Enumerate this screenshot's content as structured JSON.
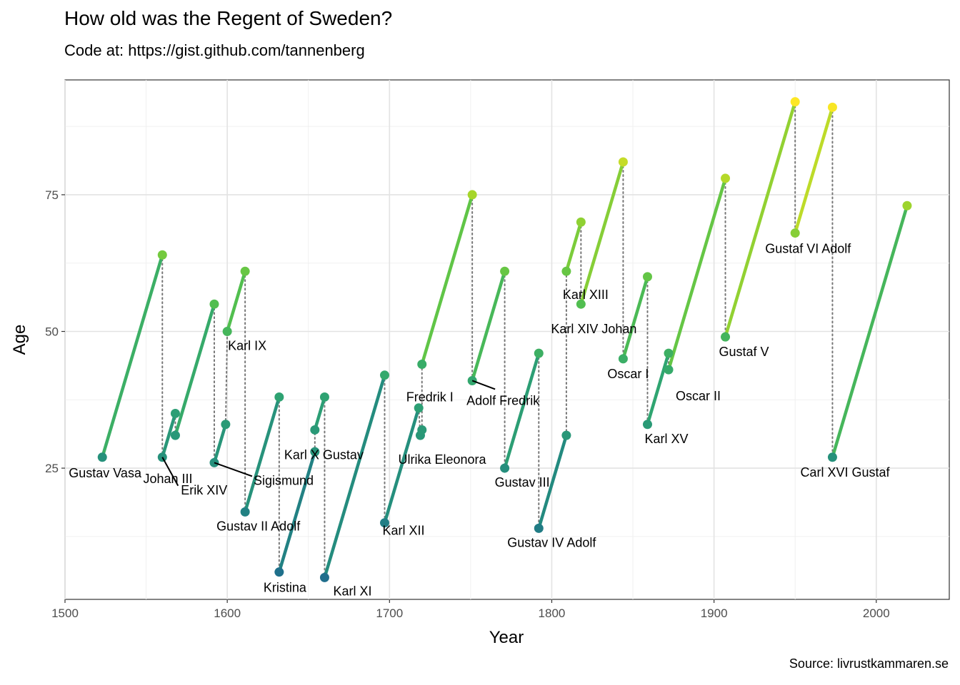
{
  "title": "How old was the Regent of Sweden?",
  "subtitle": "Code at: https://gist.github.com/tannenberg",
  "caption": "Source: livrustkammaren.se",
  "chart_data": {
    "type": "line",
    "title": "How old was the Regent of Sweden?",
    "subtitle": "Code at: https://gist.github.com/tannenberg",
    "xlabel": "Year",
    "ylabel": "Age",
    "xlim": [
      1500,
      2045
    ],
    "ylim": [
      1,
      96
    ],
    "x_ticks": [
      1500,
      1600,
      1700,
      1800,
      1900,
      2000
    ],
    "y_ticks": [
      25,
      50,
      75
    ],
    "grid": true,
    "legend": "none",
    "color_scale": [
      "#1f6e8c",
      "#238a7f",
      "#2fa571",
      "#56c24b",
      "#a4d62a",
      "#fde725"
    ],
    "regents": [
      {
        "name": "Gustav Vasa",
        "start_year": 1523,
        "start_age": 27,
        "end_year": 1560,
        "end_age": 64
      },
      {
        "name": "Erik XIV",
        "start_year": 1560,
        "start_age": 27,
        "end_year": 1568,
        "end_age": 35
      },
      {
        "name": "Johan III",
        "start_year": 1568,
        "start_age": 31,
        "end_year": 1592,
        "end_age": 55
      },
      {
        "name": "Sigismund",
        "start_year": 1592,
        "start_age": 26,
        "end_year": 1599,
        "end_age": 33
      },
      {
        "name": "Karl IX",
        "start_year": 1600,
        "start_age": 50,
        "end_year": 1611,
        "end_age": 61
      },
      {
        "name": "Gustav II Adolf",
        "start_year": 1611,
        "start_age": 17,
        "end_year": 1632,
        "end_age": 38
      },
      {
        "name": "Kristina",
        "start_year": 1632,
        "start_age": 6,
        "end_year": 1654,
        "end_age": 28
      },
      {
        "name": "Karl X Gustav",
        "start_year": 1654,
        "start_age": 32,
        "end_year": 1660,
        "end_age": 38
      },
      {
        "name": "Karl XI",
        "start_year": 1660,
        "start_age": 5,
        "end_year": 1697,
        "end_age": 42
      },
      {
        "name": "Karl XII",
        "start_year": 1697,
        "start_age": 15,
        "end_year": 1718,
        "end_age": 36
      },
      {
        "name": "Ulrika Eleonora",
        "start_year": 1719,
        "start_age": 31,
        "end_year": 1720,
        "end_age": 32
      },
      {
        "name": "Fredrik I",
        "start_year": 1720,
        "start_age": 44,
        "end_year": 1751,
        "end_age": 75
      },
      {
        "name": "Adolf Fredrik",
        "start_year": 1751,
        "start_age": 41,
        "end_year": 1771,
        "end_age": 61
      },
      {
        "name": "Gustav III",
        "start_year": 1771,
        "start_age": 25,
        "end_year": 1792,
        "end_age": 46
      },
      {
        "name": "Gustav IV Adolf",
        "start_year": 1792,
        "start_age": 14,
        "end_year": 1809,
        "end_age": 31
      },
      {
        "name": "Karl XIII",
        "start_year": 1809,
        "start_age": 61,
        "end_year": 1818,
        "end_age": 70
      },
      {
        "name": "Karl XIV Johan",
        "start_year": 1818,
        "start_age": 55,
        "end_year": 1844,
        "end_age": 81
      },
      {
        "name": "Oscar I",
        "start_year": 1844,
        "start_age": 45,
        "end_year": 1859,
        "end_age": 60
      },
      {
        "name": "Karl XV",
        "start_year": 1859,
        "start_age": 33,
        "end_year": 1872,
        "end_age": 46
      },
      {
        "name": "Oscar II",
        "start_year": 1872,
        "start_age": 43,
        "end_year": 1907,
        "end_age": 78
      },
      {
        "name": "Gustaf V",
        "start_year": 1907,
        "start_age": 49,
        "end_year": 1950,
        "end_age": 92
      },
      {
        "name": "Gustaf VI Adolf",
        "start_year": 1950,
        "start_age": 68,
        "end_year": 1973,
        "end_age": 91
      },
      {
        "name": "Carl XVI Gustaf",
        "start_year": 1973,
        "start_age": 27,
        "end_year": 2019,
        "end_age": 73
      }
    ]
  }
}
